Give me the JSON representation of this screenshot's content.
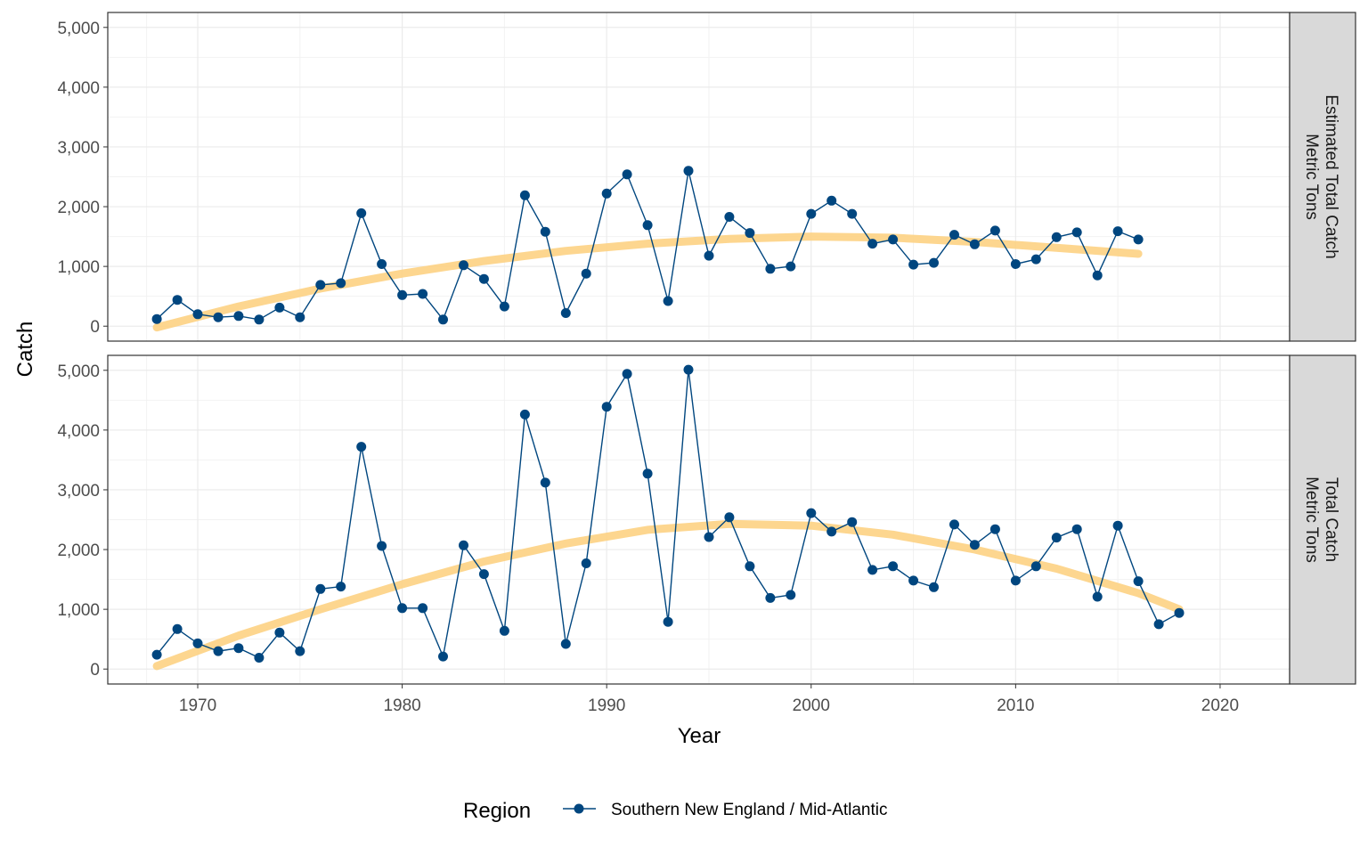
{
  "chart_data": {
    "type": "line",
    "xlabel": "Year",
    "ylabel": "Catch",
    "xlim": [
      1965.6,
      2023.4
    ],
    "ylim": [
      -250,
      5250
    ],
    "x_ticks": [
      1970,
      1980,
      1990,
      2000,
      2010,
      2020
    ],
    "x_tick_labels": [
      "1970",
      "1980",
      "1990",
      "2000",
      "2010",
      "2020"
    ],
    "y_ticks": [
      0,
      1000,
      2000,
      3000,
      4000,
      5000
    ],
    "y_tick_labels": [
      "0",
      "1,000",
      "2,000",
      "3,000",
      "4,000",
      "5,000"
    ],
    "grid": true,
    "legend": {
      "title": "Region",
      "placement": "bottom",
      "entries": [
        {
          "label": "Southern New England / Mid-Atlantic",
          "color": "#00467f"
        }
      ]
    },
    "colors": {
      "series": "#00467f",
      "trend": "#fdd283",
      "strip_fill": "#d9d9d9"
    },
    "panels": [
      {
        "strip_line1": "Estimated Total Catch",
        "strip_line2": "Metric Tons",
        "series": [
          {
            "name": "Southern New England / Mid-Atlantic",
            "x": [
              1968,
              1969,
              1970,
              1971,
              1972,
              1973,
              1974,
              1975,
              1976,
              1977,
              1978,
              1979,
              1980,
              1981,
              1982,
              1983,
              1984,
              1985,
              1986,
              1987,
              1988,
              1989,
              1990,
              1991,
              1992,
              1993,
              1994,
              1995,
              1996,
              1997,
              1998,
              1999,
              2000,
              2001,
              2002,
              2003,
              2004,
              2005,
              2006,
              2007,
              2008,
              2009,
              2010,
              2011,
              2012,
              2013,
              2014,
              2015,
              2016
            ],
            "y": [
              120,
              440,
              200,
              150,
              170,
              110,
              310,
              150,
              690,
              720,
              1890,
              1040,
              520,
              540,
              110,
              1020,
              790,
              330,
              2190,
              1580,
              220,
              880,
              2220,
              2540,
              1690,
              420,
              2600,
              1180,
              1830,
              1560,
              960,
              1000,
              1880,
              2100,
              1880,
              1380,
              1450,
              1030,
              1060,
              1530,
              1370,
              1600,
              1040,
              1120,
              1490,
              1570,
              850,
              1590,
              1450
            ]
          }
        ],
        "trend": {
          "x": [
            1968,
            1972,
            1976,
            1980,
            1984,
            1988,
            1992,
            1996,
            2000,
            2004,
            2008,
            2012,
            2016
          ],
          "y": [
            -20,
            330,
            630,
            880,
            1090,
            1260,
            1380,
            1460,
            1500,
            1480,
            1410,
            1310,
            1210
          ]
        }
      },
      {
        "strip_line1": "Total Catch",
        "strip_line2": "Metric Tons",
        "series": [
          {
            "name": "Southern New England / Mid-Atlantic",
            "x": [
              1968,
              1969,
              1970,
              1971,
              1972,
              1973,
              1974,
              1975,
              1976,
              1977,
              1978,
              1979,
              1980,
              1981,
              1982,
              1983,
              1984,
              1985,
              1986,
              1987,
              1988,
              1989,
              1990,
              1991,
              1992,
              1993,
              1994,
              1995,
              1996,
              1997,
              1998,
              1999,
              2000,
              2001,
              2002,
              2003,
              2004,
              2005,
              2006,
              2007,
              2008,
              2009,
              2010,
              2011,
              2012,
              2013,
              2014,
              2015,
              2016,
              2017,
              2018
            ],
            "y": [
              240,
              670,
              430,
              300,
              350,
              190,
              610,
              300,
              1340,
              1380,
              3720,
              2060,
              1020,
              1020,
              210,
              2070,
              1590,
              640,
              4260,
              3120,
              420,
              1770,
              4390,
              4940,
              3270,
              790,
              5010,
              2210,
              2540,
              1720,
              1190,
              1240,
              2610,
              2300,
              2460,
              1660,
              1720,
              1480,
              1370,
              2420,
              2080,
              2340,
              1480,
              1720,
              2200,
              2340,
              1210,
              2400,
              1470,
              750,
              940
            ]
          }
        ],
        "trend": {
          "x": [
            1968,
            1972,
            1976,
            1980,
            1984,
            1988,
            1992,
            1996,
            2000,
            2004,
            2008,
            2012,
            2016,
            2018
          ],
          "y": [
            50,
            560,
            1000,
            1420,
            1800,
            2100,
            2330,
            2430,
            2400,
            2250,
            2000,
            1680,
            1270,
            1000
          ]
        }
      }
    ]
  }
}
